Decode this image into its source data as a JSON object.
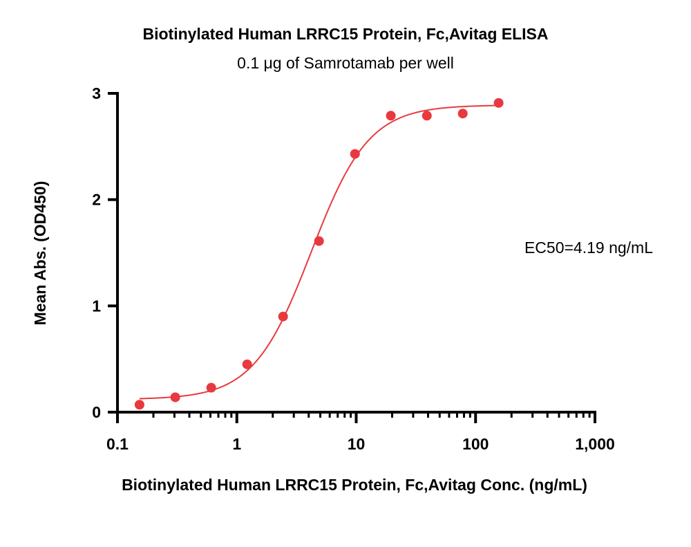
{
  "chart_data": {
    "type": "scatter",
    "title": "Biotinylated Human LRRC15 Protein, Fc,Avitag ELISA",
    "subtitle": "0.1 μg of Samrotamab per well",
    "xlabel": "Biotinylated Human LRRC15 Protein, Fc,Avitag Conc. (ng/mL)",
    "ylabel": "Mean Abs. (OD450)",
    "x_scale": "log",
    "xlim": [
      0.1,
      1000
    ],
    "ylim": [
      0,
      3
    ],
    "x_ticks": [
      0.1,
      1,
      10,
      100,
      1000
    ],
    "x_tick_labels": [
      "0.1",
      "1",
      "10",
      "100",
      "1,000"
    ],
    "y_ticks": [
      0,
      1,
      2,
      3
    ],
    "y_tick_labels": [
      "0",
      "1",
      "2",
      "3"
    ],
    "grid": false,
    "legend": "none",
    "marker_color": "#e8393f",
    "series": [
      {
        "x": [
          0.153,
          0.305,
          0.61,
          1.22,
          2.44,
          4.88,
          9.77,
          19.5,
          39.1,
          78.1,
          156
        ],
        "y": [
          0.07,
          0.14,
          0.23,
          0.45,
          0.9,
          1.61,
          2.43,
          2.79,
          2.79,
          2.81,
          2.91
        ]
      }
    ],
    "fit": {
      "model": "4PL",
      "bottom": 0.12,
      "top": 2.89,
      "ec50": 4.19,
      "hill": 1.8
    },
    "annotation": "EC50=4.19 ng/mL"
  }
}
